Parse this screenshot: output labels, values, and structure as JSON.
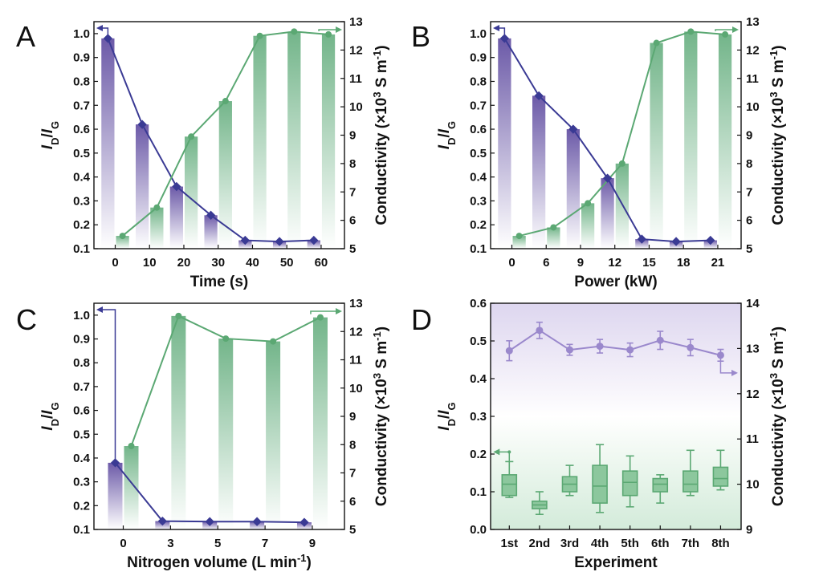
{
  "colors": {
    "purple": "#3a3a94",
    "purple_bar": "#6c5aa8",
    "green": "#5ba873",
    "green_bar": "#73b58a",
    "lavender": "#9a88cc",
    "box_green": "#8cc79d"
  },
  "chart_data": [
    {
      "panel": "A",
      "type": "bar",
      "xlabel": "Time (s)",
      "categories": [
        "0",
        "10",
        "20",
        "30",
        "40",
        "50",
        "60"
      ],
      "ylabel": "ID/IG",
      "ylim": [
        0.1,
        1.05
      ],
      "y_ticks": [
        "0.1",
        "0.2",
        "0.3",
        "0.4",
        "0.5",
        "0.6",
        "0.7",
        "0.8",
        "0.9",
        "1.0"
      ],
      "y2label": "Conductivity (×10^3 S m^-1)",
      "y2lim": [
        5,
        13
      ],
      "y2_ticks": [
        "5",
        "6",
        "7",
        "8",
        "9",
        "10",
        "11",
        "12",
        "13"
      ],
      "series": [
        {
          "name": "ID/IG",
          "axis": "left",
          "values": [
            0.98,
            0.62,
            0.36,
            0.24,
            0.135,
            0.13,
            0.135
          ]
        },
        {
          "name": "Conductivity",
          "axis": "right",
          "values": [
            5.45,
            6.45,
            8.95,
            10.2,
            12.5,
            12.65,
            12.55
          ]
        }
      ]
    },
    {
      "panel": "B",
      "type": "bar",
      "xlabel": "Power (kW)",
      "categories": [
        "0",
        "6",
        "9",
        "12",
        "15",
        "18",
        "21"
      ],
      "ylabel": "ID/IG",
      "ylim": [
        0.1,
        1.05
      ],
      "y_ticks": [
        "0.1",
        "0.2",
        "0.3",
        "0.4",
        "0.5",
        "0.6",
        "0.7",
        "0.8",
        "0.9",
        "1.0"
      ],
      "y2label": "Conductivity (×10^3 S m^-1)",
      "y2lim": [
        5,
        13
      ],
      "y2_ticks": [
        "5",
        "6",
        "7",
        "8",
        "9",
        "10",
        "11",
        "12",
        "13"
      ],
      "series": [
        {
          "name": "ID/IG",
          "axis": "left",
          "values": [
            0.98,
            0.74,
            0.6,
            0.395,
            0.14,
            0.13,
            0.135
          ]
        },
        {
          "name": "Conductivity",
          "axis": "right",
          "values": [
            5.45,
            5.75,
            6.6,
            8.0,
            12.25,
            12.65,
            12.55
          ]
        }
      ]
    },
    {
      "panel": "C",
      "type": "bar",
      "xlabel": "Nitrogen volume (L min^-1)",
      "categories": [
        "0",
        "3",
        "5",
        "7",
        "9"
      ],
      "ylabel": "ID/IG",
      "ylim": [
        0.1,
        1.05
      ],
      "y_ticks": [
        "0.1",
        "0.2",
        "0.3",
        "0.4",
        "0.5",
        "0.6",
        "0.7",
        "0.8",
        "0.9",
        "1.0"
      ],
      "y2label": "Conductivity (×10^3 S m^-1)",
      "y2lim": [
        5,
        13
      ],
      "y2_ticks": [
        "5",
        "6",
        "7",
        "8",
        "9",
        "10",
        "11",
        "12",
        "13"
      ],
      "series": [
        {
          "name": "ID/IG",
          "axis": "left",
          "values": [
            0.38,
            0.135,
            0.133,
            0.133,
            0.13
          ]
        },
        {
          "name": "Conductivity",
          "axis": "right",
          "values": [
            7.95,
            12.55,
            11.75,
            11.65,
            12.5
          ]
        }
      ]
    },
    {
      "panel": "D",
      "type": "box",
      "xlabel": "Experiment",
      "categories": [
        "1st",
        "2nd",
        "3rd",
        "4th",
        "5th",
        "6th",
        "7th",
        "8th"
      ],
      "ylabel": "ID/IG",
      "ylim": [
        0.0,
        0.6
      ],
      "y_ticks": [
        "0.0",
        "0.1",
        "0.2",
        "0.3",
        "0.4",
        "0.5",
        "0.6"
      ],
      "y2label": "Conductivity (×10^3 S m^-1)",
      "y2lim": [
        9,
        14
      ],
      "y2_ticks": [
        "9",
        "10",
        "11",
        "12",
        "13",
        "14"
      ],
      "series": [
        {
          "name": "ID/IG",
          "axis": "left",
          "boxes": [
            {
              "min": 0.085,
              "q1": 0.09,
              "median": 0.12,
              "q3": 0.145,
              "max": 0.18
            },
            {
              "min": 0.04,
              "q1": 0.055,
              "median": 0.065,
              "q3": 0.075,
              "max": 0.1
            },
            {
              "min": 0.09,
              "q1": 0.1,
              "median": 0.12,
              "q3": 0.14,
              "max": 0.17
            },
            {
              "min": 0.045,
              "q1": 0.07,
              "median": 0.115,
              "q3": 0.17,
              "max": 0.225
            },
            {
              "min": 0.06,
              "q1": 0.09,
              "median": 0.125,
              "q3": 0.155,
              "max": 0.195
            },
            {
              "min": 0.07,
              "q1": 0.1,
              "median": 0.12,
              "q3": 0.135,
              "max": 0.145
            },
            {
              "min": 0.09,
              "q1": 0.1,
              "median": 0.12,
              "q3": 0.155,
              "max": 0.21
            },
            {
              "min": 0.105,
              "q1": 0.115,
              "median": 0.135,
              "q3": 0.165,
              "max": 0.21
            }
          ]
        },
        {
          "name": "Conductivity",
          "axis": "right",
          "values": [
            12.95,
            13.4,
            12.97,
            13.05,
            12.97,
            13.18,
            13.02,
            12.85
          ],
          "errors": [
            0.22,
            0.18,
            0.12,
            0.15,
            0.15,
            0.2,
            0.18,
            0.13
          ]
        }
      ]
    }
  ]
}
